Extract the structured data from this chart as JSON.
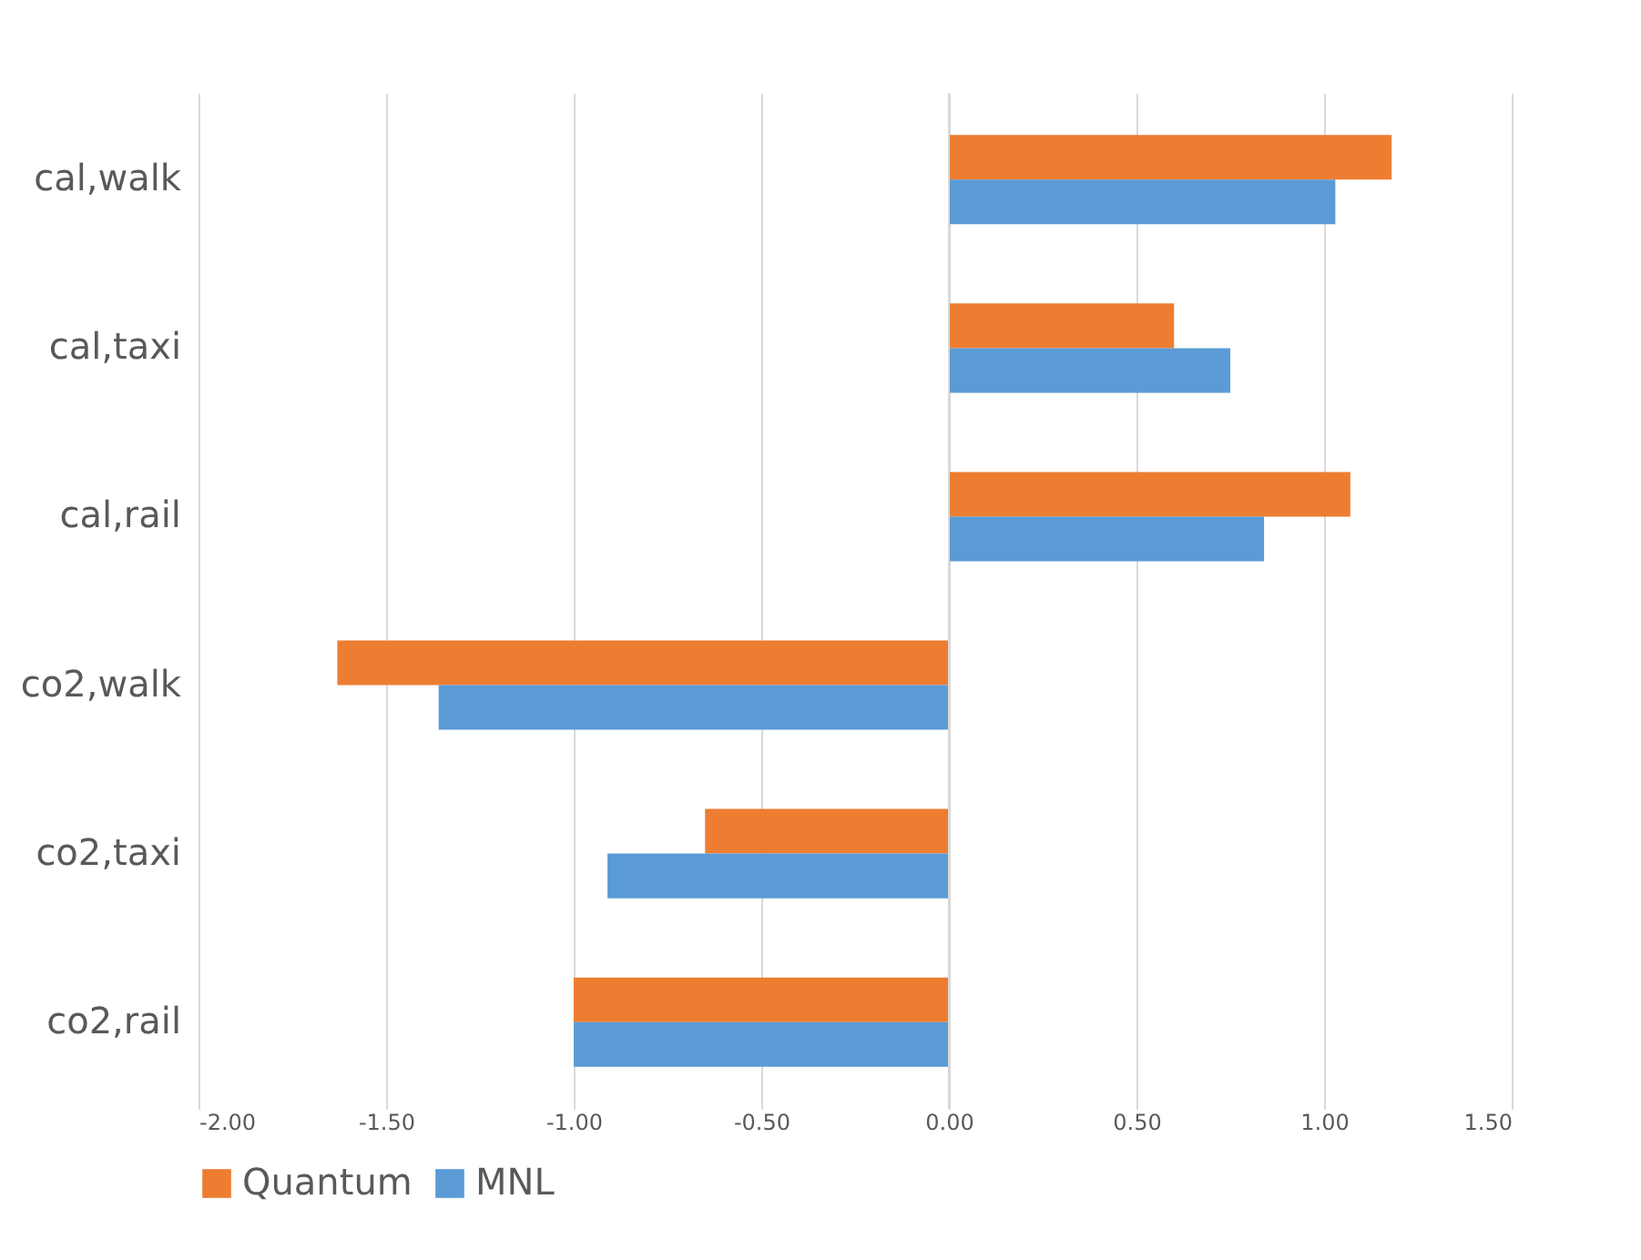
{
  "chart_data": {
    "type": "bar",
    "orientation": "horizontal",
    "categories": [
      "cal,walk",
      "cal,taxi",
      "cal,rail",
      "co2,walk",
      "co2,taxi",
      "co2,rail"
    ],
    "series": [
      {
        "name": "Quantum",
        "color": "#ed7d31",
        "values": [
          1.18,
          0.6,
          1.07,
          -1.63,
          -0.65,
          -1.0
        ]
      },
      {
        "name": "MNL",
        "color": "#5b9bd5",
        "values": [
          1.03,
          0.75,
          0.84,
          -1.36,
          -0.91,
          -1.0
        ]
      }
    ],
    "xlim": [
      -2,
      1.5
    ],
    "xticks": [
      {
        "value": -2,
        "label": "-2.00"
      },
      {
        "value": -1.5,
        "label": "-1.50"
      },
      {
        "value": -1,
        "label": "-1.00"
      },
      {
        "value": -0.5,
        "label": "-0.50"
      },
      {
        "value": 0,
        "label": "0.00"
      },
      {
        "value": 0.5,
        "label": "0.50"
      },
      {
        "value": 1,
        "label": "1.00"
      },
      {
        "value": 1.5,
        "label": "1.50"
      }
    ],
    "grid": "x",
    "legend": "bottom"
  }
}
